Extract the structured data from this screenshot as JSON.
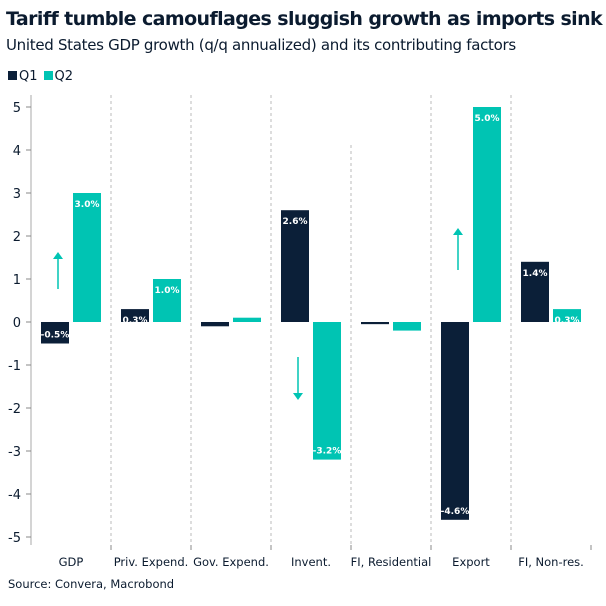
{
  "chart_data": {
    "type": "bar",
    "title": "Tariff tumble camouflages sluggish growth as imports sink",
    "subtitle": "United States GDP growth (q/q annualized) and its contributing factors",
    "categories": [
      "GDP",
      "Priv. Expend.",
      "Gov. Expend.",
      "Invent.",
      "FI, Residential",
      "Export",
      "FI, Non-res."
    ],
    "series": [
      {
        "name": "Q1",
        "color": "#0b1f38",
        "values": [
          -0.5,
          0.3,
          -0.1,
          2.6,
          -0.05,
          -4.6,
          1.4
        ],
        "labels": [
          "-0.5%",
          "0.3%",
          "",
          "2.6%",
          "",
          "-4.6%",
          "1.4%"
        ]
      },
      {
        "name": "Q2",
        "color": "#00c4b3",
        "values": [
          3.0,
          1.0,
          0.1,
          -3.2,
          -0.2,
          5.0,
          0.3
        ],
        "labels": [
          "3.0%",
          "1.0%",
          "",
          "-3.2%",
          "",
          "5.0%",
          "0.3%"
        ]
      }
    ],
    "ylim": [
      -5,
      5
    ],
    "yticks": [
      "5",
      "4",
      "3",
      "2",
      "1",
      "0",
      "-1",
      "-2",
      "-3",
      "-4",
      "-5"
    ],
    "legend": "top-left",
    "annotations": [
      {
        "category": "GDP",
        "arrow": "up"
      },
      {
        "category": "Invent.",
        "arrow": "down"
      },
      {
        "category": "Export",
        "arrow": "up"
      }
    ]
  },
  "source": "Source: Convera, Macrobond"
}
